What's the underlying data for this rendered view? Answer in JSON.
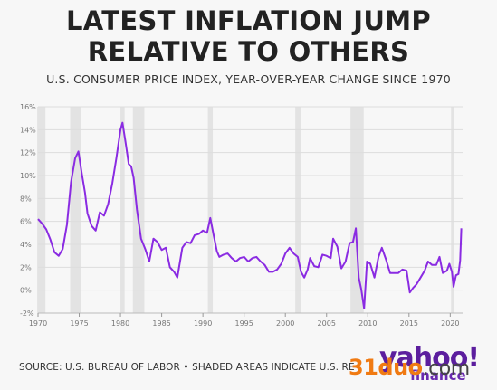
{
  "header": {
    "title_line1": "LATEST INFLATION JUMP",
    "title_line2": "RELATIVE TO OTHERS",
    "subtitle": "U.S. CONSUMER PRICE INDEX, YEAR-OVER-YEAR CHANGE SINCE 1970"
  },
  "footer": {
    "source": "SOURCE: U.S. BUREAU OF LABOR • SHADED AREAS INDICATE U.S. RECESSIONS",
    "logo_text": "yahoo!",
    "logo_sub": "finance",
    "watermark": "31duo",
    "watermark_suffix": ".com"
  },
  "colors": {
    "line": "#8a2be2",
    "recession": "#e3e3e3",
    "grid": "#dddddd",
    "background": "#f7f7f7"
  },
  "chart_data": {
    "type": "line",
    "title": "LATEST INFLATION JUMP RELATIVE TO OTHERS",
    "subtitle": "U.S. CONSUMER PRICE INDEX, YEAR-OVER-YEAR CHANGE SINCE 1970",
    "xlabel": "",
    "ylabel": "",
    "xlim": [
      1970,
      2021.5
    ],
    "ylim": [
      -2,
      16
    ],
    "x_ticks": [
      1970,
      1975,
      1980,
      1985,
      1990,
      1995,
      2000,
      2005,
      2010,
      2015,
      2020
    ],
    "y_ticks": [
      -2,
      0,
      2,
      4,
      6,
      8,
      10,
      12,
      14,
      16
    ],
    "y_tick_labels": [
      "-2%",
      "0%",
      "2%",
      "4%",
      "6%",
      "8%",
      "10%",
      "12%",
      "14%",
      "16%"
    ],
    "grid": true,
    "recessions": [
      [
        1969.9,
        1970.9
      ],
      [
        1973.9,
        1975.2
      ],
      [
        1980.0,
        1980.5
      ],
      [
        1981.5,
        1982.9
      ],
      [
        1990.6,
        1991.2
      ],
      [
        2001.2,
        2001.9
      ],
      [
        2007.9,
        2009.5
      ],
      [
        2020.1,
        2020.4
      ]
    ],
    "series": [
      {
        "x": [
          1970.0,
          1970.5,
          1971.0,
          1971.5,
          1972.0,
          1972.5,
          1973.0,
          1973.5,
          1974.0,
          1974.5,
          1974.9,
          1975.3,
          1975.7,
          1976.0,
          1976.5,
          1977.0,
          1977.5,
          1978.0,
          1978.5,
          1979.0,
          1979.5,
          1980.0,
          1980.25,
          1980.6,
          1981.0,
          1981.3,
          1981.6,
          1982.0,
          1982.5,
          1983.0,
          1983.5,
          1984.0,
          1984.5,
          1985.0,
          1985.5,
          1986.0,
          1986.5,
          1986.9,
          1987.5,
          1988.0,
          1988.5,
          1989.0,
          1989.5,
          1990.0,
          1990.5,
          1990.9,
          1991.3,
          1991.7,
          1992.0,
          1992.5,
          1993.0,
          1993.5,
          1994.0,
          1994.5,
          1995.0,
          1995.5,
          1996.0,
          1996.5,
          1997.0,
          1997.5,
          1998.0,
          1998.5,
          1999.0,
          1999.5,
          2000.0,
          2000.5,
          2001.0,
          2001.5,
          2001.9,
          2002.3,
          2002.7,
          2003.0,
          2003.5,
          2004.0,
          2004.5,
          2005.0,
          2005.5,
          2005.8,
          2006.3,
          2006.8,
          2007.3,
          2007.8,
          2008.2,
          2008.55,
          2008.9,
          2009.2,
          2009.55,
          2009.9,
          2010.3,
          2010.8,
          2011.3,
          2011.7,
          2012.2,
          2012.7,
          2013.2,
          2013.7,
          2014.2,
          2014.7,
          2015.1,
          2015.5,
          2015.9,
          2016.4,
          2016.9,
          2017.3,
          2017.8,
          2018.3,
          2018.7,
          2019.1,
          2019.6,
          2019.9,
          2020.2,
          2020.4,
          2020.7,
          2021.0,
          2021.2,
          2021.35
        ],
        "y": [
          6.2,
          5.8,
          5.3,
          4.4,
          3.3,
          3.0,
          3.6,
          5.7,
          9.4,
          11.5,
          12.1,
          10.2,
          8.5,
          6.7,
          5.6,
          5.2,
          6.8,
          6.5,
          7.5,
          9.3,
          11.5,
          14.0,
          14.6,
          13.0,
          11.0,
          10.8,
          9.8,
          7.0,
          4.5,
          3.6,
          2.5,
          4.5,
          4.2,
          3.5,
          3.7,
          2.0,
          1.6,
          1.1,
          3.7,
          4.2,
          4.1,
          4.8,
          4.9,
          5.2,
          5.0,
          6.3,
          4.8,
          3.4,
          2.9,
          3.1,
          3.2,
          2.8,
          2.5,
          2.8,
          2.9,
          2.5,
          2.8,
          2.9,
          2.5,
          2.2,
          1.6,
          1.6,
          1.8,
          2.3,
          3.2,
          3.7,
          3.2,
          2.9,
          1.6,
          1.1,
          1.8,
          2.8,
          2.1,
          2.0,
          3.1,
          3.0,
          2.8,
          4.5,
          3.8,
          1.9,
          2.5,
          4.1,
          4.2,
          5.4,
          1.1,
          0.1,
          -1.6,
          2.5,
          2.3,
          1.1,
          2.9,
          3.7,
          2.7,
          1.5,
          1.5,
          1.5,
          1.8,
          1.7,
          -0.2,
          0.2,
          0.5,
          1.1,
          1.7,
          2.5,
          2.2,
          2.2,
          2.9,
          1.5,
          1.7,
          2.3,
          1.6,
          0.3,
          1.3,
          1.4,
          2.6,
          5.4
        ]
      }
    ]
  }
}
